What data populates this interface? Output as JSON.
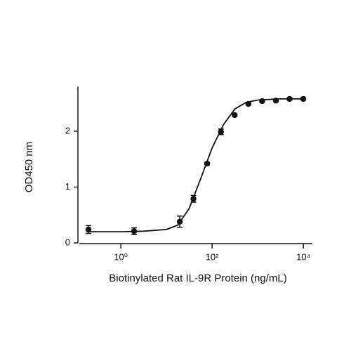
{
  "chart_data": {
    "type": "scatter",
    "xlabel": "Biotinylated Rat IL-9R Protein (ng/mL)",
    "ylabel": "OD450 nm",
    "xscale": "log",
    "xlim": [
      0.123,
      15800
    ],
    "ylim": [
      0,
      2.8
    ],
    "xticks": [
      {
        "value": 1,
        "label": "10⁰"
      },
      {
        "value": 100,
        "label": "10²"
      },
      {
        "value": 10000,
        "label": "10⁴"
      }
    ],
    "yticks": [
      0,
      1,
      2
    ],
    "color": "#111111",
    "series": [
      {
        "x": [
          0.195,
          1.95,
          19.53,
          39.06,
          78.125,
          156.25,
          312.5,
          625,
          1250,
          2500,
          5000,
          10000
        ],
        "values": [
          0.24,
          0.21,
          0.38,
          0.79,
          1.42,
          1.99,
          2.29,
          2.49,
          2.54,
          2.55,
          2.58,
          2.58
        ],
        "errors": [
          0.07,
          0.06,
          0.1,
          0.06,
          0.02,
          0.05,
          0.02,
          0.02,
          0.02,
          0.02,
          0.02,
          0.02
        ]
      }
    ],
    "curve": {
      "x": [
        0.18,
        1,
        3.16,
        10,
        17.8,
        31.6,
        56.2,
        100,
        178,
        316,
        562,
        1000,
        3162,
        10000
      ],
      "values": [
        0.2,
        0.2,
        0.21,
        0.24,
        0.32,
        0.62,
        1.15,
        1.7,
        2.12,
        2.4,
        2.52,
        2.56,
        2.58,
        2.58
      ]
    }
  }
}
